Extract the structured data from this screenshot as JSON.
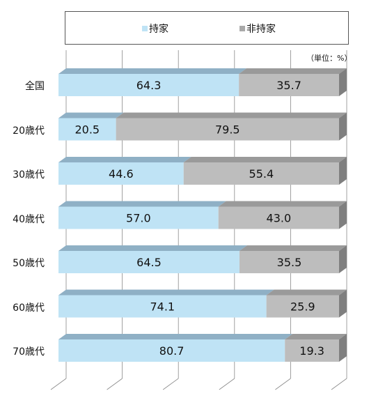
{
  "chart_data": {
    "type": "bar",
    "orientation": "horizontal",
    "stacked": true,
    "percent_stacked": true,
    "style": "3d",
    "unit": "（単位：%）",
    "categories": [
      "全国",
      "20歳代",
      "30歳代",
      "40歳代",
      "50歳代",
      "60歳代",
      "70歳代"
    ],
    "series": [
      {
        "name": "持家",
        "color": "#bfe3f5",
        "values": [
          64.3,
          20.5,
          44.6,
          57.0,
          64.5,
          74.1,
          80.7
        ],
        "labels": [
          "64.3",
          "20.5",
          "44.6",
          "57.0",
          "64.5",
          "74.1",
          "80.7"
        ]
      },
      {
        "name": "非持家",
        "color": "#bdbdbd",
        "values": [
          35.7,
          79.5,
          55.4,
          43.0,
          35.5,
          25.9,
          19.3
        ],
        "labels": [
          "35.7",
          "79.5",
          "55.4",
          "43.0",
          "35.5",
          "25.9",
          "19.3"
        ]
      }
    ],
    "xlim": [
      0,
      100
    ],
    "grid": true,
    "legend_position": "top"
  }
}
